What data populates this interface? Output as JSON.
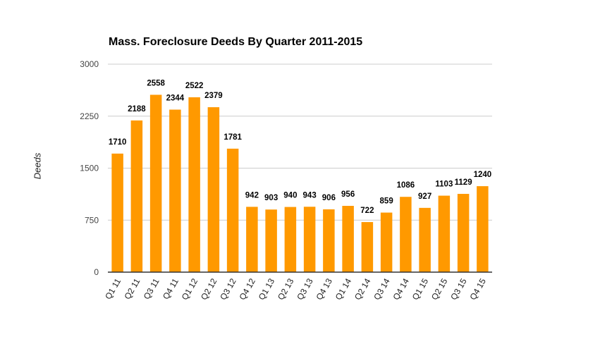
{
  "chart_data": {
    "type": "bar",
    "title": "Mass. Foreclosure Deeds By Quarter 2011-2015",
    "xlabel": "",
    "ylabel": "Deeds",
    "ylim": [
      0,
      3000
    ],
    "yticks": [
      "0",
      "750",
      "1500",
      "2250",
      "3000"
    ],
    "grid": true,
    "legend": "none",
    "bar_color": "#ff9900",
    "categories": [
      "Q1 11",
      "Q2 11",
      "Q3 11",
      "Q4 11",
      "Q1 12",
      "Q2 12",
      "Q3 12",
      "Q4 12",
      "Q1 13",
      "Q2 13",
      "Q3 13",
      "Q4 13",
      "Q1 14",
      "Q2 14",
      "Q3 14",
      "Q4 14",
      "Q1 15",
      "Q2 15",
      "Q3 15",
      "Q4 15"
    ],
    "values": [
      1710,
      2188,
      2558,
      2344,
      2522,
      2379,
      1781,
      942,
      903,
      940,
      943,
      906,
      956,
      722,
      859,
      1086,
      927,
      1103,
      1129,
      1240
    ]
  }
}
